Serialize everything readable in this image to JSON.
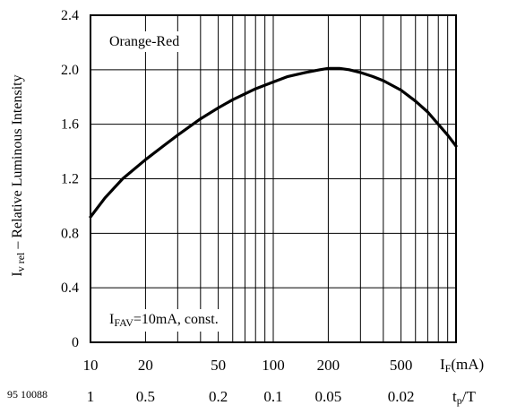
{
  "chart_data": {
    "type": "line",
    "annotation_top": "Orange-Red",
    "annotation_bottom": {
      "main": "I",
      "sub": "FAV",
      "rest": "=10mA, const."
    },
    "ylabel": {
      "main": "I",
      "sub": "v rel",
      "rest": "  – Relative Luminous Intensity"
    },
    "xlabel": {
      "main": "I",
      "sub": "F",
      "rest": "(mA)"
    },
    "x2label": {
      "main": "t",
      "sub": "p",
      "rest": "/T"
    },
    "figure_id": "95 10088",
    "x_scale": "log",
    "xlim": [
      10,
      1000
    ],
    "ylim": [
      0,
      2.4
    ],
    "grid": true,
    "y_ticks": [
      "0",
      "0.4",
      "0.8",
      "1.2",
      "1.6",
      "2.0",
      "2.4"
    ],
    "x_ticks": [
      {
        "value": 10,
        "label": "10"
      },
      {
        "value": 20,
        "label": "20"
      },
      {
        "value": 50,
        "label": "50"
      },
      {
        "value": 100,
        "label": "100"
      },
      {
        "value": 200,
        "label": "200"
      },
      {
        "value": 500,
        "label": "500"
      }
    ],
    "x2_ticks": [
      {
        "value": 10,
        "label": "1"
      },
      {
        "value": 20,
        "label": "0.5"
      },
      {
        "value": 50,
        "label": "0.2"
      },
      {
        "value": 100,
        "label": "0.1"
      },
      {
        "value": 200,
        "label": "0.05"
      },
      {
        "value": 500,
        "label": "0.02"
      }
    ],
    "series": [
      {
        "x": [
          10,
          12,
          15,
          20,
          25,
          30,
          40,
          50,
          60,
          80,
          100,
          120,
          150,
          180,
          200,
          230,
          260,
          300,
          350,
          400,
          500,
          600,
          700,
          800,
          900,
          1000
        ],
        "y": [
          0.92,
          1.06,
          1.2,
          1.34,
          1.44,
          1.52,
          1.64,
          1.72,
          1.78,
          1.86,
          1.91,
          1.95,
          1.98,
          2.0,
          2.01,
          2.01,
          2.0,
          1.98,
          1.95,
          1.92,
          1.85,
          1.77,
          1.69,
          1.6,
          1.52,
          1.44
        ]
      }
    ]
  }
}
